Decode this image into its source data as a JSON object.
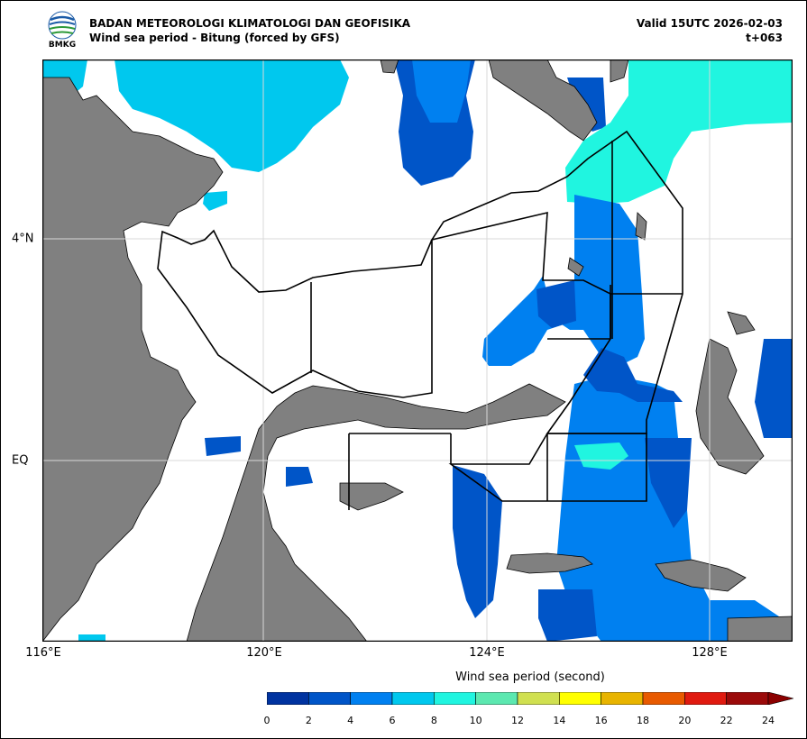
{
  "header": {
    "logo_text": "BMKG",
    "title_line1": "BADAN METEOROLOGI KLIMATOLOGI DAN GEOFISIKA",
    "title_line2": "Wind sea period - Bitung (forced by GFS)",
    "valid": "Valid 15UTC 2026-02-03",
    "lead_time": "t+063"
  },
  "axes": {
    "x_ticks": [
      "116°E",
      "120°E",
      "124°E",
      "128°E"
    ],
    "y_ticks": [
      "4°N",
      "EQ"
    ]
  },
  "colorbar": {
    "title": "Wind sea period (second)",
    "labels": [
      "0",
      "2",
      "4",
      "6",
      "8",
      "10",
      "12",
      "14",
      "16",
      "18",
      "20",
      "22",
      "24"
    ],
    "colors": [
      "#0033a0",
      "#0055c8",
      "#0080f0",
      "#00c8ee",
      "#20f5e0",
      "#5ce8b0",
      "#d0e050",
      "#ffff00",
      "#e8b400",
      "#e85a00",
      "#e01a10",
      "#9b0a0a"
    ],
    "extend_color": "#8b0000"
  },
  "map_colors": {
    "land": "#808080",
    "sea": "#ffffff",
    "grid": "#d8d8d8"
  }
}
